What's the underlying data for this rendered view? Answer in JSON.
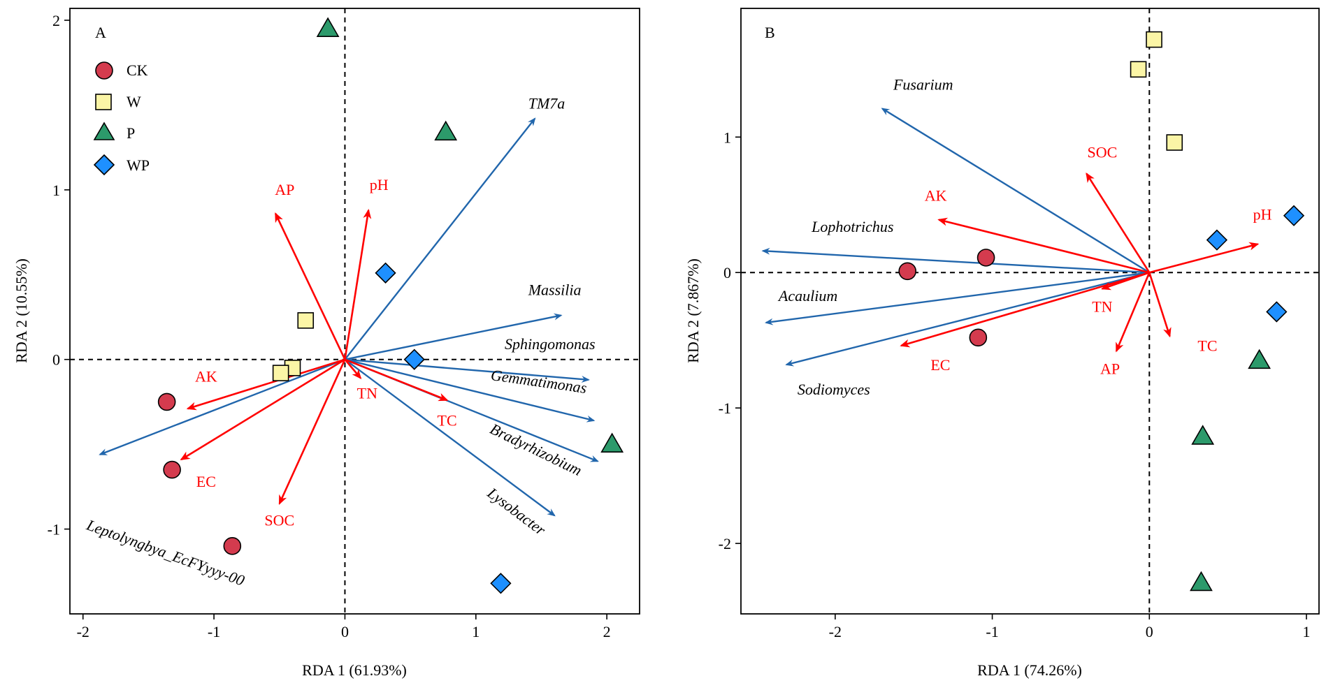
{
  "colors": {
    "CK": "#d43b4e",
    "W": "#fbf5a6",
    "P": "#2c9a6b",
    "WP": "#1e90ff",
    "species_arrow": "#2166ac",
    "env_arrow": "#ff0000",
    "env_text": "#ff0000"
  },
  "legend": {
    "title": "",
    "entries": [
      {
        "key": "CK",
        "label": "CK",
        "shape": "circle"
      },
      {
        "key": "W",
        "label": "W",
        "shape": "square"
      },
      {
        "key": "P",
        "label": "P",
        "shape": "triangle"
      },
      {
        "key": "WP",
        "label": "WP",
        "shape": "diamond"
      }
    ]
  },
  "chart_data": [
    {
      "type": "scatter",
      "panel_letter": "A",
      "xlabel": "RDA 1 (61.93%)",
      "ylabel": "RDA 2 (10.55%)",
      "xlim": [
        -2.1,
        2.25
      ],
      "ylim": [
        -1.5,
        2.07
      ],
      "xticks": [
        -2,
        -1,
        0,
        1,
        2
      ],
      "xtick_labels": [
        "-2",
        "-1",
        "0",
        "1",
        "2"
      ],
      "yticks": [
        -1,
        0,
        1,
        2
      ],
      "ytick_labels": [
        "-1",
        "0",
        "1",
        "2"
      ],
      "reference_lines": {
        "x": 0,
        "y": 0,
        "style": "dashed"
      },
      "legend_position": "top-left",
      "samples": [
        {
          "group": "CK",
          "x": -1.36,
          "y": -0.25
        },
        {
          "group": "CK",
          "x": -1.32,
          "y": -0.65
        },
        {
          "group": "CK",
          "x": -0.86,
          "y": -1.1
        },
        {
          "group": "W",
          "x": -0.3,
          "y": 0.23
        },
        {
          "group": "W",
          "x": -0.4,
          "y": -0.05
        },
        {
          "group": "W",
          "x": -0.49,
          "y": -0.08
        },
        {
          "group": "P",
          "x": -0.13,
          "y": 1.95
        },
        {
          "group": "P",
          "x": 0.77,
          "y": 1.34
        },
        {
          "group": "P",
          "x": 2.04,
          "y": -0.5
        },
        {
          "group": "WP",
          "x": 0.31,
          "y": 0.51
        },
        {
          "group": "WP",
          "x": 0.53,
          "y": 0.0
        },
        {
          "group": "WP",
          "x": 1.19,
          "y": -1.32
        }
      ],
      "species_vectors": [
        {
          "label": "TM7a",
          "x": 1.45,
          "y": 1.42,
          "label_x": 1.4,
          "label_y": 1.48,
          "label_rotation": 0
        },
        {
          "label": "Massilia",
          "x": 1.65,
          "y": 0.26,
          "label_x": 1.4,
          "label_y": 0.38,
          "label_rotation": 0
        },
        {
          "label": "Sphingomonas",
          "x": 1.86,
          "y": -0.12,
          "label_x": 1.22,
          "label_y": 0.06,
          "label_rotation": 0
        },
        {
          "label": "Gemmatimonas",
          "x": 1.9,
          "y": -0.36,
          "label_x": 1.11,
          "label_y": -0.12,
          "label_rotation": 8
        },
        {
          "label": "Bradyrhizobium",
          "x": 1.93,
          "y": -0.6,
          "label_x": 1.1,
          "label_y": -0.43,
          "label_rotation": 26
        },
        {
          "label": "Lysobacter",
          "x": 1.6,
          "y": -0.92,
          "label_x": 1.08,
          "label_y": -0.8,
          "label_rotation": 37
        },
        {
          "label": "Leptolyngbya_EcFYyyy-00",
          "x": -1.87,
          "y": -0.56,
          "label_x": -1.98,
          "label_y": -1.0,
          "label_rotation": 20
        }
      ],
      "env_vectors": [
        {
          "label": "AP",
          "x": -0.53,
          "y": 0.86,
          "label_x": -0.46,
          "label_y": 0.97
        },
        {
          "label": "pH",
          "x": 0.18,
          "y": 0.88,
          "label_x": 0.26,
          "label_y": 1.0
        },
        {
          "label": "AK",
          "x": -1.2,
          "y": -0.29,
          "label_x": -1.06,
          "label_y": -0.13
        },
        {
          "label": "EC",
          "x": -1.25,
          "y": -0.59,
          "label_x": -1.06,
          "label_y": -0.75
        },
        {
          "label": "SOC",
          "x": -0.5,
          "y": -0.85,
          "label_x": -0.5,
          "label_y": -0.98
        },
        {
          "label": "TN",
          "x": 0.12,
          "y": -0.11,
          "label_x": 0.17,
          "label_y": -0.23
        },
        {
          "label": "TC",
          "x": 0.78,
          "y": -0.24,
          "label_x": 0.78,
          "label_y": -0.39
        }
      ]
    },
    {
      "type": "scatter",
      "panel_letter": "B",
      "xlabel": "RDA 1 (74.26%)",
      "ylabel": "RDA 2 (7.867%)",
      "xlim": [
        -2.6,
        1.08
      ],
      "ylim": [
        -2.52,
        1.95
      ],
      "xticks": [
        -2,
        -1,
        0,
        1
      ],
      "xtick_labels": [
        "-2",
        "-1",
        "0",
        "1"
      ],
      "yticks": [
        -2,
        -1,
        0,
        1
      ],
      "ytick_labels": [
        "-2",
        "-1",
        "0",
        "1"
      ],
      "reference_lines": {
        "x": 0,
        "y": 0,
        "style": "dashed"
      },
      "legend_position": "none",
      "samples": [
        {
          "group": "CK",
          "x": -1.54,
          "y": 0.01
        },
        {
          "group": "CK",
          "x": -1.04,
          "y": 0.11
        },
        {
          "group": "CK",
          "x": -1.09,
          "y": -0.48
        },
        {
          "group": "W",
          "x": 0.03,
          "y": 1.72
        },
        {
          "group": "W",
          "x": -0.07,
          "y": 1.5
        },
        {
          "group": "W",
          "x": 0.16,
          "y": 0.96
        },
        {
          "group": "P",
          "x": 0.7,
          "y": -0.65
        },
        {
          "group": "P",
          "x": 0.34,
          "y": -1.21
        },
        {
          "group": "P",
          "x": 0.33,
          "y": -2.29
        },
        {
          "group": "WP",
          "x": 0.92,
          "y": 0.42
        },
        {
          "group": "WP",
          "x": 0.43,
          "y": 0.24
        },
        {
          "group": "WP",
          "x": 0.81,
          "y": -0.29
        }
      ],
      "species_vectors": [
        {
          "label": "Fusarium",
          "x": -1.7,
          "y": 1.21,
          "label_x": -1.63,
          "label_y": 1.35,
          "label_rotation": 0
        },
        {
          "label": "Lophotrichus",
          "x": -2.46,
          "y": 0.16,
          "label_x": -2.15,
          "label_y": 0.3,
          "label_rotation": 0
        },
        {
          "label": "Acaulium",
          "x": -2.44,
          "y": -0.37,
          "label_x": -2.36,
          "label_y": -0.21,
          "label_rotation": 0
        },
        {
          "label": "Sodiomyces",
          "x": -2.31,
          "y": -0.68,
          "label_x": -2.24,
          "label_y": -0.9,
          "label_rotation": 0
        }
      ],
      "env_vectors": [
        {
          "label": "SOC",
          "x": -0.4,
          "y": 0.73,
          "label_x": -0.3,
          "label_y": 0.85
        },
        {
          "label": "AK",
          "x": -1.34,
          "y": 0.39,
          "label_x": -1.36,
          "label_y": 0.53
        },
        {
          "label": "pH",
          "x": 0.69,
          "y": 0.21,
          "label_x": 0.72,
          "label_y": 0.39
        },
        {
          "label": "TN",
          "x": -0.3,
          "y": -0.12,
          "label_x": -0.3,
          "label_y": -0.29
        },
        {
          "label": "EC",
          "x": -1.58,
          "y": -0.54,
          "label_x": -1.33,
          "label_y": -0.72
        },
        {
          "label": "AP",
          "x": -0.21,
          "y": -0.58,
          "label_x": -0.25,
          "label_y": -0.75
        },
        {
          "label": "TC",
          "x": 0.13,
          "y": -0.47,
          "label_x": 0.37,
          "label_y": -0.58
        }
      ]
    }
  ]
}
